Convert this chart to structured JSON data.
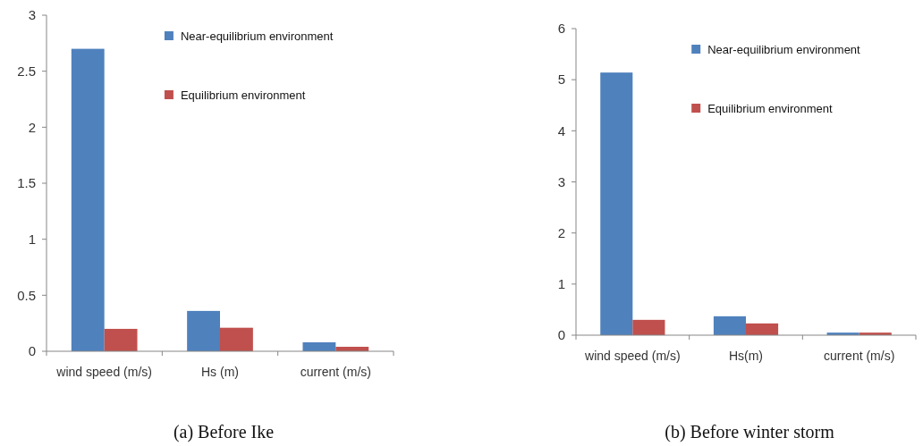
{
  "chart_data": [
    {
      "type": "bar",
      "title": "(a)   Before Ike",
      "categories": [
        "wind speed (m/s)",
        "Hs (m)",
        "current (m/s)"
      ],
      "series": [
        {
          "name": "Near-equilibrium environment",
          "color": "#4f81bd",
          "values": [
            2.7,
            0.36,
            0.08
          ]
        },
        {
          "name": "Equilibrium environment",
          "color": "#c0504d",
          "values": [
            0.2,
            0.21,
            0.04
          ]
        }
      ],
      "ylim": [
        0,
        3
      ],
      "yticks": [
        0,
        0.5,
        1,
        1.5,
        2,
        2.5,
        3
      ],
      "grid": false,
      "legend": "top right"
    },
    {
      "type": "bar",
      "title": "(b)   Before winter storm",
      "categories": [
        "wind speed (m/s)",
        "Hs(m)",
        "current (m/s)"
      ],
      "series": [
        {
          "name": "Near-equilibrium environment",
          "color": "#4f81bd",
          "values": [
            5.14,
            0.37,
            0.05
          ]
        },
        {
          "name": "Equilibrium environment",
          "color": "#c0504d",
          "values": [
            0.3,
            0.23,
            0.05
          ]
        }
      ],
      "ylim": [
        0,
        6
      ],
      "yticks": [
        0,
        1,
        2,
        3,
        4,
        5,
        6
      ],
      "grid": false,
      "legend": "top right"
    }
  ]
}
